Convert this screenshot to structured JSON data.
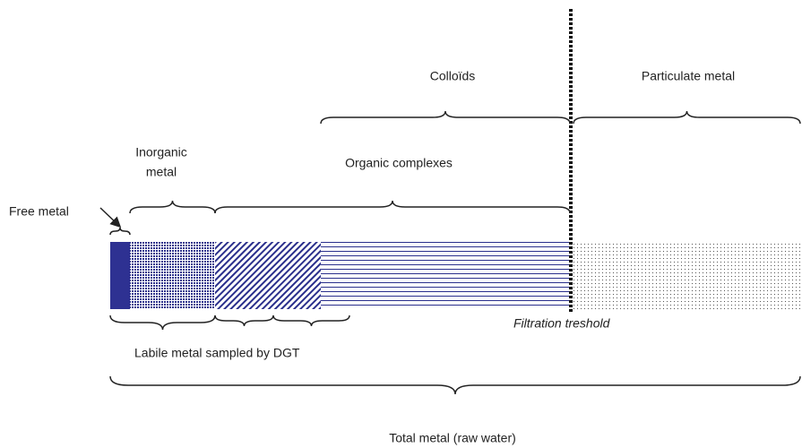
{
  "labels": {
    "colloids": "Colloïds",
    "particulate": "Particulate metal",
    "inorganic": [
      "Inorganic",
      "metal"
    ],
    "organic": "Organic complexes",
    "free": "Free metal",
    "filtration": "Filtration treshold",
    "labile": "Labile metal sampled by DGT",
    "total": "Total metal (raw water)"
  }
}
